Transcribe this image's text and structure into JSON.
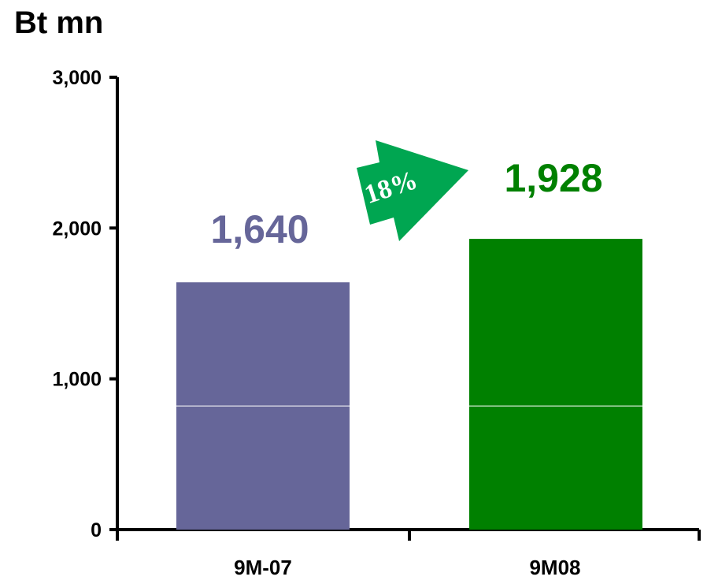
{
  "chart_data": {
    "type": "bar",
    "unit_label": "Bt mn",
    "categories": [
      "9M-07",
      "9M08"
    ],
    "values": [
      1640,
      1928
    ],
    "data_labels": [
      "1,640",
      "1,928"
    ],
    "bar_colors": [
      "#666699",
      "#008000"
    ],
    "label_colors": [
      "#666699",
      "#008000"
    ],
    "ylim": [
      0,
      3000
    ],
    "yticks": [
      0,
      1000,
      2000,
      3000
    ],
    "ytick_labels": [
      "0",
      "1,000",
      "2,000",
      "3,000"
    ],
    "inner_split_value": 820,
    "grid": false,
    "legend": "none",
    "growth_annotation": {
      "text": "18%",
      "color": "#00A651"
    }
  }
}
